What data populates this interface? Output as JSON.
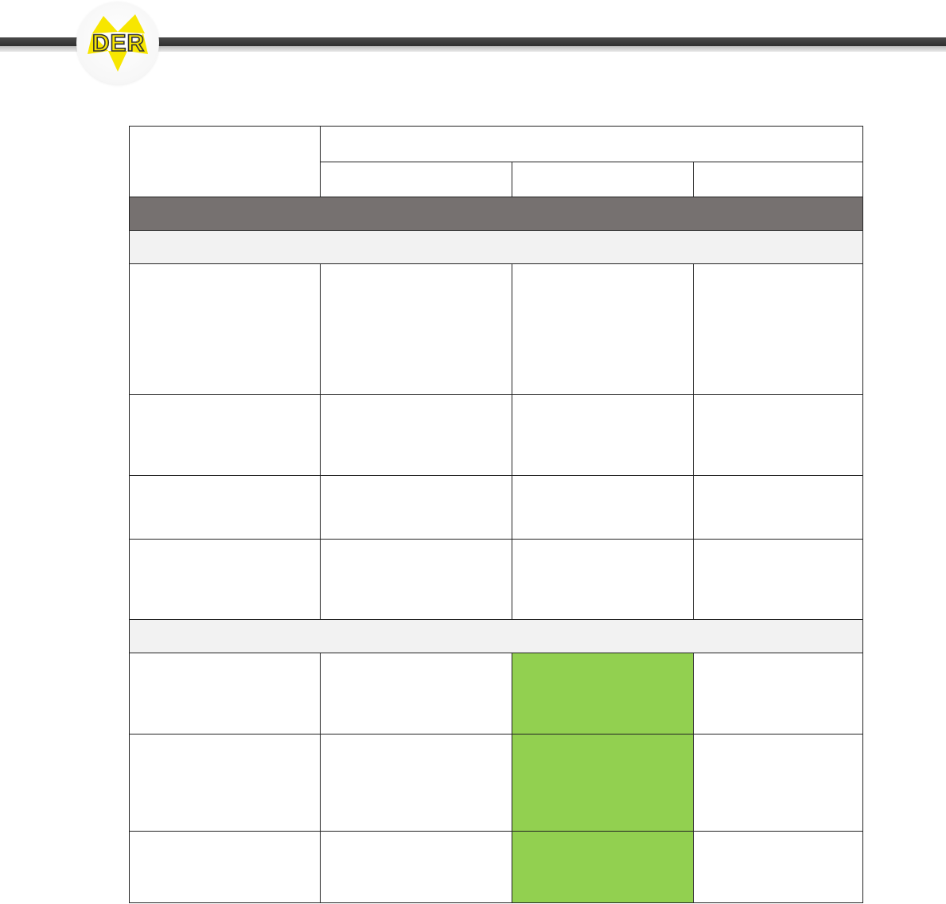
{
  "logo": {
    "text": "DER",
    "brand_yellow": "#f7e600",
    "outline_color": "#333333"
  },
  "colors": {
    "section_header": "#767170",
    "subsection_header": "#f2f2f2",
    "highlight_green": "#92d050",
    "border": "#222222"
  },
  "table": {
    "header": {
      "corner": "",
      "group": "",
      "columns": [
        "",
        "",
        ""
      ]
    },
    "section": "",
    "subsections": [
      "",
      ""
    ],
    "rows": [
      {
        "cells": [
          "",
          "",
          "",
          ""
        ],
        "highlight": []
      },
      {
        "cells": [
          "",
          "",
          "",
          ""
        ],
        "highlight": []
      },
      {
        "cells": [
          "",
          "",
          "",
          ""
        ],
        "highlight": []
      },
      {
        "cells": [
          "",
          "",
          "",
          ""
        ],
        "highlight": []
      },
      {
        "cells": [
          "",
          "",
          "",
          ""
        ],
        "highlight": [
          2
        ]
      },
      {
        "cells": [
          "",
          "",
          "",
          ""
        ],
        "highlight": [
          2
        ]
      },
      {
        "cells": [
          "",
          "",
          "",
          ""
        ],
        "highlight": [
          2
        ]
      }
    ]
  }
}
